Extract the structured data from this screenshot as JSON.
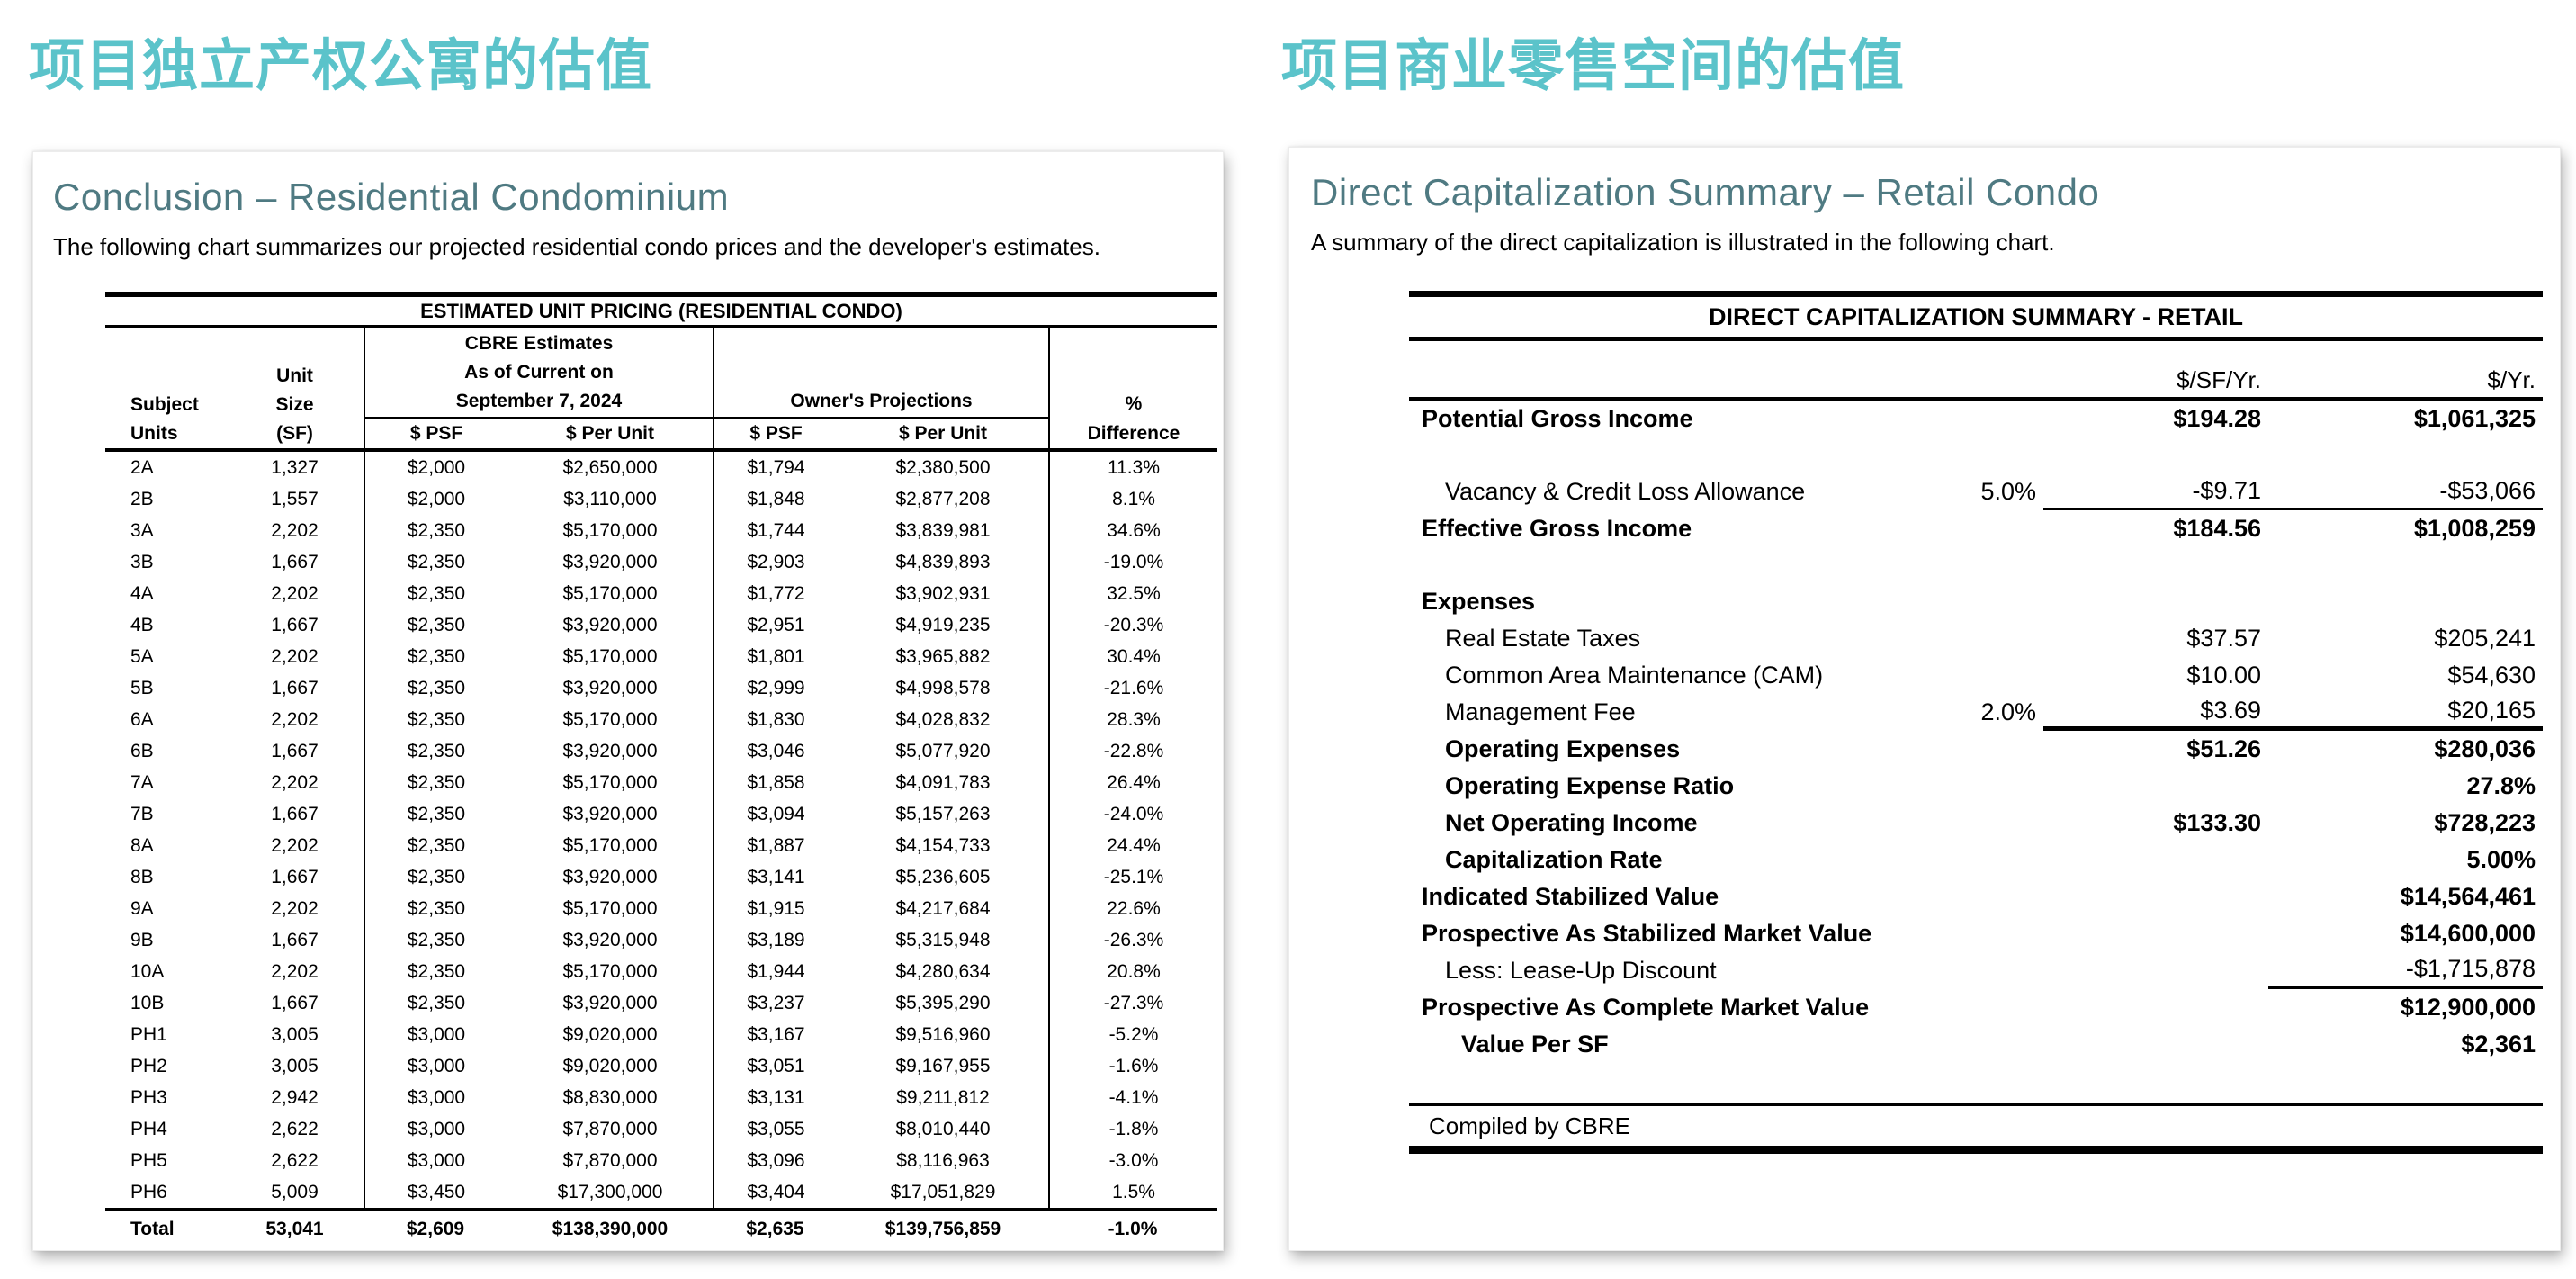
{
  "page": {
    "left_section_heading": "项目独立产权公寓的估值",
    "right_section_heading": "项目商业零售空间的估值"
  },
  "colors": {
    "accent_teal": "#5BC3CA",
    "panel_title_slate": "#4F7A82"
  },
  "left_panel": {
    "title": "Conclusion – Residential Condominium",
    "intro": "The following chart summarizes our projected residential condo prices and the developer's estimates.",
    "table": {
      "title": "ESTIMATED UNIT PRICING (RESIDENTIAL CONDO)",
      "header": {
        "subject_top": "Subject",
        "subject_bottom": "Units",
        "size_lines": "Unit\nSize",
        "size_bottom": "(SF)",
        "cbre_group": "CBRE Estimates\nAs of Current on\nSeptember 7, 2024",
        "owner_group": "Owner's Projections",
        "diff_top": "%",
        "diff_bottom": "Difference",
        "psf": "$ PSF",
        "per_unit": "$ Per Unit"
      },
      "rows": [
        [
          "2A",
          "1,327",
          "$2,000",
          "$2,650,000",
          "$1,794",
          "$2,380,500",
          "11.3%"
        ],
        [
          "2B",
          "1,557",
          "$2,000",
          "$3,110,000",
          "$1,848",
          "$2,877,208",
          "8.1%"
        ],
        [
          "3A",
          "2,202",
          "$2,350",
          "$5,170,000",
          "$1,744",
          "$3,839,981",
          "34.6%"
        ],
        [
          "3B",
          "1,667",
          "$2,350",
          "$3,920,000",
          "$2,903",
          "$4,839,893",
          "-19.0%"
        ],
        [
          "4A",
          "2,202",
          "$2,350",
          "$5,170,000",
          "$1,772",
          "$3,902,931",
          "32.5%"
        ],
        [
          "4B",
          "1,667",
          "$2,350",
          "$3,920,000",
          "$2,951",
          "$4,919,235",
          "-20.3%"
        ],
        [
          "5A",
          "2,202",
          "$2,350",
          "$5,170,000",
          "$1,801",
          "$3,965,882",
          "30.4%"
        ],
        [
          "5B",
          "1,667",
          "$2,350",
          "$3,920,000",
          "$2,999",
          "$4,998,578",
          "-21.6%"
        ],
        [
          "6A",
          "2,202",
          "$2,350",
          "$5,170,000",
          "$1,830",
          "$4,028,832",
          "28.3%"
        ],
        [
          "6B",
          "1,667",
          "$2,350",
          "$3,920,000",
          "$3,046",
          "$5,077,920",
          "-22.8%"
        ],
        [
          "7A",
          "2,202",
          "$2,350",
          "$5,170,000",
          "$1,858",
          "$4,091,783",
          "26.4%"
        ],
        [
          "7B",
          "1,667",
          "$2,350",
          "$3,920,000",
          "$3,094",
          "$5,157,263",
          "-24.0%"
        ],
        [
          "8A",
          "2,202",
          "$2,350",
          "$5,170,000",
          "$1,887",
          "$4,154,733",
          "24.4%"
        ],
        [
          "8B",
          "1,667",
          "$2,350",
          "$3,920,000",
          "$3,141",
          "$5,236,605",
          "-25.1%"
        ],
        [
          "9A",
          "2,202",
          "$2,350",
          "$5,170,000",
          "$1,915",
          "$4,217,684",
          "22.6%"
        ],
        [
          "9B",
          "1,667",
          "$2,350",
          "$3,920,000",
          "$3,189",
          "$5,315,948",
          "-26.3%"
        ],
        [
          "10A",
          "2,202",
          "$2,350",
          "$5,170,000",
          "$1,944",
          "$4,280,634",
          "20.8%"
        ],
        [
          "10B",
          "1,667",
          "$2,350",
          "$3,920,000",
          "$3,237",
          "$5,395,290",
          "-27.3%"
        ],
        [
          "PH1",
          "3,005",
          "$3,000",
          "$9,020,000",
          "$3,167",
          "$9,516,960",
          "-5.2%"
        ],
        [
          "PH2",
          "3,005",
          "$3,000",
          "$9,020,000",
          "$3,051",
          "$9,167,955",
          "-1.6%"
        ],
        [
          "PH3",
          "2,942",
          "$3,000",
          "$8,830,000",
          "$3,131",
          "$9,211,812",
          "-4.1%"
        ],
        [
          "PH4",
          "2,622",
          "$3,000",
          "$7,870,000",
          "$3,055",
          "$8,010,440",
          "-1.8%"
        ],
        [
          "PH5",
          "2,622",
          "$3,000",
          "$7,870,000",
          "$3,096",
          "$8,116,963",
          "-3.0%"
        ],
        [
          "PH6",
          "5,009",
          "$3,450",
          "$17,300,000",
          "$3,404",
          "$17,051,829",
          "1.5%"
        ]
      ],
      "total": [
        "Total",
        "53,041",
        "$2,609",
        "$138,390,000",
        "$2,635",
        "$139,756,859",
        "-1.0%"
      ]
    }
  },
  "right_panel": {
    "title": "Direct Capitalization Summary – Retail Condo",
    "intro": "A summary of the direct capitalization is illustrated in the following chart.",
    "table": {
      "title": "DIRECT CAPITALIZATION SUMMARY - RETAIL",
      "col_sf": "$/SF/Yr.",
      "col_yr": "$/Yr.",
      "rows": [
        {
          "label": "Potential Gross Income",
          "bold": true,
          "pct": "",
          "sf": "$194.28",
          "yr": "$1,061,325",
          "indent": 0,
          "underline": "none"
        },
        {
          "spacer": true
        },
        {
          "label": "Vacancy & Credit Loss Allowance",
          "bold": false,
          "pct": "5.0%",
          "sf": "-$9.71",
          "yr": "-$53,066",
          "indent": 1,
          "underline": "sfyr",
          "underline_weight": 3
        },
        {
          "label": "Effective Gross Income",
          "bold": true,
          "pct": "",
          "sf": "$184.56",
          "yr": "$1,008,259",
          "indent": 0,
          "underline": "none"
        },
        {
          "spacer": true
        },
        {
          "label": "Expenses",
          "bold": true,
          "pct": "",
          "sf": "",
          "yr": "",
          "indent": 0,
          "underline": "none"
        },
        {
          "label": "Real Estate Taxes",
          "bold": false,
          "pct": "",
          "sf": "$37.57",
          "yr": "$205,241",
          "indent": 1,
          "underline": "none"
        },
        {
          "label": "Common Area Maintenance (CAM)",
          "bold": false,
          "pct": "",
          "sf": "$10.00",
          "yr": "$54,630",
          "indent": 1,
          "underline": "none"
        },
        {
          "label": "Management Fee",
          "bold": false,
          "pct": "2.0%",
          "sf": "$3.69",
          "yr": "$20,165",
          "indent": 1,
          "underline": "sfyr",
          "underline_weight": 5
        },
        {
          "label": "Operating Expenses",
          "bold": true,
          "pct": "",
          "sf": "$51.26",
          "yr": "$280,036",
          "indent": 1,
          "underline": "none"
        },
        {
          "label": "Operating Expense Ratio",
          "bold": true,
          "pct": "",
          "sf": "",
          "yr": "27.8%",
          "indent": 1,
          "underline": "none"
        },
        {
          "label": "Net Operating Income",
          "bold": true,
          "pct": "",
          "sf": "$133.30",
          "yr": "$728,223",
          "indent": 1,
          "underline": "none"
        },
        {
          "label": "Capitalization Rate",
          "bold": true,
          "pct": "",
          "sf": "",
          "yr": "5.00%",
          "indent": 1,
          "underline": "none"
        },
        {
          "label": "Indicated Stabilized Value",
          "bold": true,
          "pct": "",
          "sf": "",
          "yr": "$14,564,461",
          "indent": 0,
          "underline": "none"
        },
        {
          "label": "Prospective As Stabilized Market Value",
          "bold": true,
          "pct": "",
          "sf": "",
          "yr": "$14,600,000",
          "indent": 0,
          "underline": "none"
        },
        {
          "label": "Less: Lease-Up Discount",
          "bold": false,
          "pct": "",
          "sf": "",
          "yr": "-$1,715,878",
          "indent": 1,
          "underline": "yr",
          "underline_weight": 4
        },
        {
          "label": "Prospective As Complete Market Value",
          "bold": true,
          "pct": "",
          "sf": "",
          "yr": "$12,900,000",
          "indent": 0,
          "underline": "none"
        },
        {
          "label": "Value Per SF",
          "bold": true,
          "pct": "",
          "sf": "",
          "yr": "$2,361",
          "indent": 2,
          "underline": "none"
        }
      ],
      "footer": "Compiled by CBRE"
    }
  }
}
